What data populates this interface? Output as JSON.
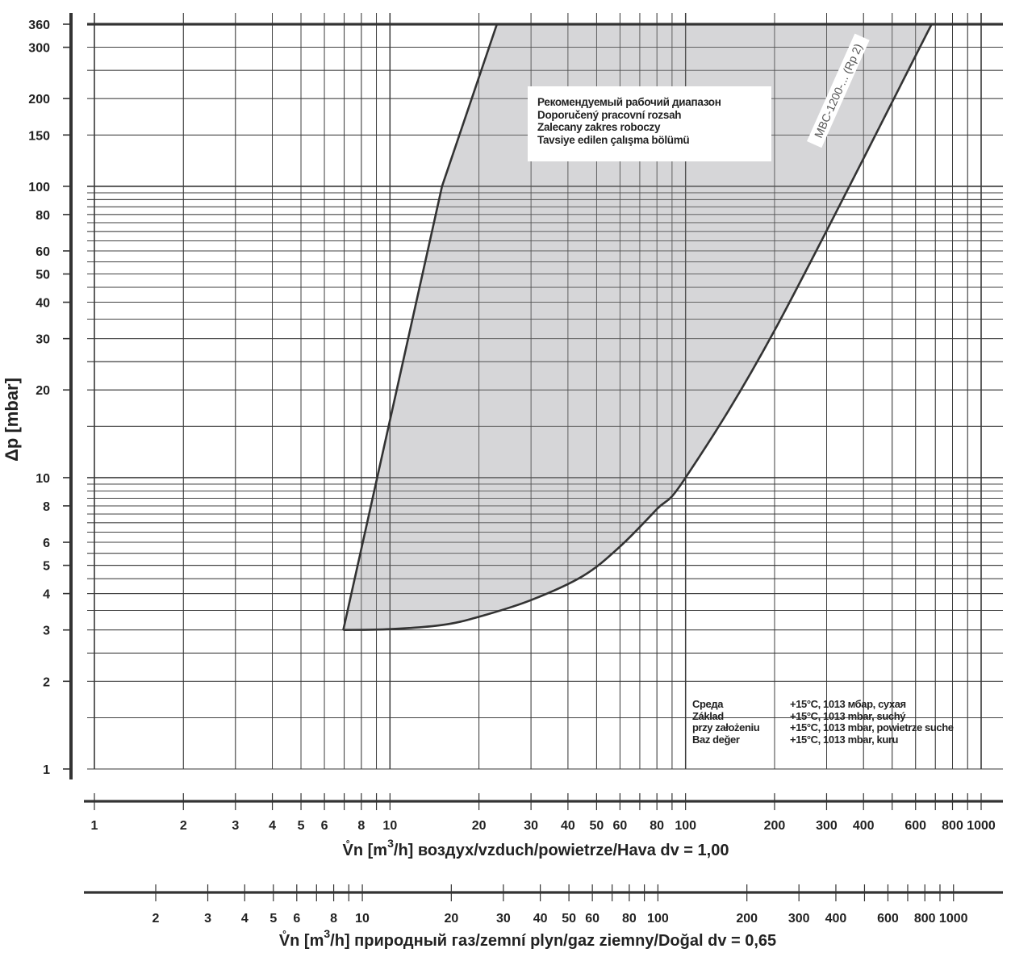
{
  "chart_data": {
    "type": "area",
    "ylabel": "Δp [mbar]",
    "y_scale": "log",
    "ylim": [
      1,
      360
    ],
    "y_ticks": [
      "1",
      "2",
      "3",
      "4",
      "5",
      "6",
      "8",
      "10",
      "20",
      "30",
      "40",
      "50",
      "60",
      "80",
      "100",
      "150",
      "200",
      "300",
      "360"
    ],
    "x_scale": "log",
    "xlim": [
      1,
      1000
    ],
    "grid": true,
    "axes": [
      {
        "name": "air",
        "xlabel_main": "V̊n [m",
        "xlabel_sup": "3",
        "xlabel_rest": "/h] воздух/vzduch/powietrze/Hava dv = 1,00",
        "ticks": [
          "1",
          "2",
          "3",
          "4",
          "5",
          "6",
          "8",
          "10",
          "20",
          "30",
          "40",
          "50",
          "60",
          "80",
          "100",
          "200",
          "300",
          "400",
          "600",
          "800",
          "1000"
        ]
      },
      {
        "name": "natural-gas",
        "xlabel_main": "V̊n [m",
        "xlabel_sup": "3",
        "xlabel_rest": "/h] природный газ/zemní plyn/gaz ziemny/Doğal dv = 0,65",
        "ticks": [
          "2",
          "3",
          "4",
          "5",
          "6",
          "8",
          "10",
          "20",
          "30",
          "40",
          "50",
          "60",
          "80",
          "100",
          "200",
          "300",
          "400",
          "600",
          "800",
          "1000"
        ]
      }
    ],
    "region": {
      "name": "recommended-operating-range",
      "color": "#d6d6d8",
      "left_boundary": [
        [
          6.95,
          3.0
        ],
        [
          15.0,
          100.0
        ],
        [
          23.0,
          360.0
        ]
      ],
      "right_boundary": [
        [
          6.95,
          3.0
        ],
        [
          10.0,
          3.02
        ],
        [
          15.0,
          3.12
        ],
        [
          20.0,
          3.33
        ],
        [
          30.0,
          3.8
        ],
        [
          45.0,
          4.6
        ],
        [
          60.0,
          5.8
        ],
        [
          80.0,
          7.8
        ],
        [
          100.0,
          10.0
        ],
        [
          200.0,
          32.0
        ],
        [
          680.0,
          360.0
        ]
      ]
    },
    "curve_label": "MBC-1200-... (Rp 2)"
  },
  "legend": {
    "lines": [
      "Рекомендуемый рабочий диапазон",
      "Doporučený pracovní rozsah",
      "Zalecany zakres roboczy",
      "Tavsiye edilen çalışma bölümü"
    ]
  },
  "conditions": [
    {
      "label": "Среда",
      "value": "+15°C, 1013 мбар, сухая"
    },
    {
      "label": "Základ",
      "value": "+15°C, 1013 mbar, suchý"
    },
    {
      "label": "przy założeniu",
      "value": "+15°C, 1013 mbar, powietrze suche"
    },
    {
      "label": "Baz değer",
      "value": "+15°C, 1013 mbar, kuru"
    }
  ],
  "colors": {
    "line": "#333333",
    "grid": "#3a3a3a",
    "fill": "#d6d6d8"
  }
}
